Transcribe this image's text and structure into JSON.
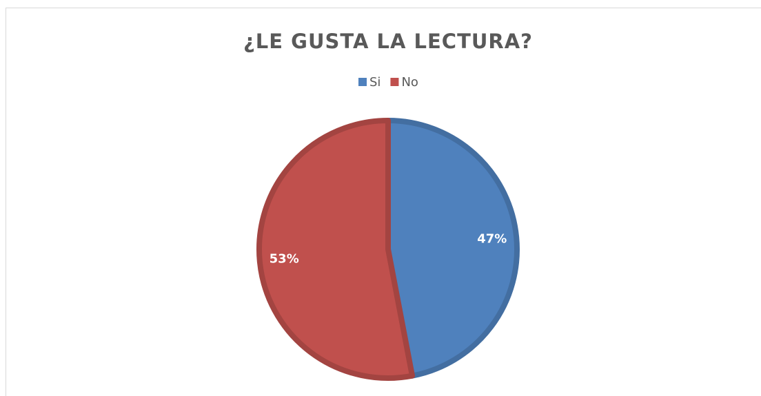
{
  "chart_data": {
    "type": "pie",
    "title": "¿LE GUSTA LA LECTURA?",
    "categories": [
      "Si",
      "No"
    ],
    "values": [
      47,
      53
    ],
    "value_labels": [
      "47%",
      "53%"
    ],
    "colors": [
      "#4f81bd",
      "#c0504d"
    ],
    "legend": "top"
  }
}
